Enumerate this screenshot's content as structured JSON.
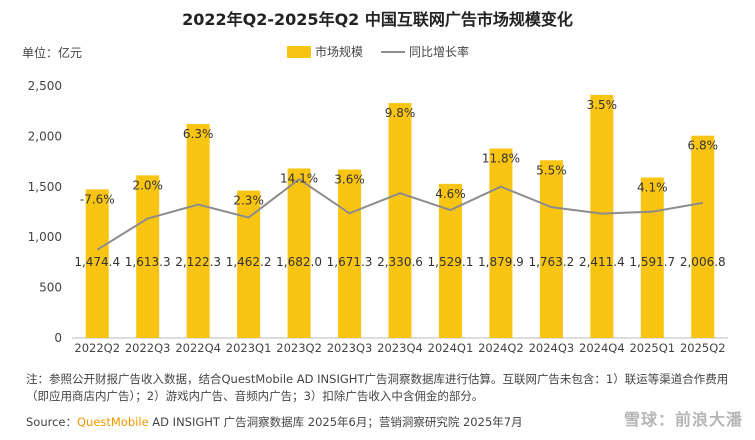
{
  "chart_data": {
    "type": "bar",
    "title": "2022年Q2-2025年Q2 中国互联网广告市场规模变化",
    "unit_label": "单位：亿元",
    "categories": [
      "2022Q2",
      "2022Q3",
      "2022Q4",
      "2023Q1",
      "2023Q2",
      "2023Q3",
      "2023Q4",
      "2024Q1",
      "2024Q2",
      "2024Q3",
      "2024Q4",
      "2025Q1",
      "2025Q2"
    ],
    "series": [
      {
        "name": "市场规模",
        "kind": "bar",
        "color": "#f9c412",
        "values": [
          1474.4,
          1613.3,
          2122.3,
          1462.2,
          1682.0,
          1671.3,
          2330.6,
          1529.1,
          1879.9,
          1763.2,
          2411.4,
          1591.7,
          2006.8
        ],
        "labels": [
          "1,474.4",
          "1,613.3",
          "2,122.3",
          "1,462.2",
          "1,682.0",
          "1,671.3",
          "2,330.6",
          "1,529.1",
          "1,879.9",
          "1,763.2",
          "2,411.4",
          "1,591.7",
          "2,006.8"
        ]
      },
      {
        "name": "同比增长率",
        "kind": "line",
        "color": "#8c8c8c",
        "values": [
          -7.6,
          2.0,
          6.3,
          2.3,
          14.1,
          3.6,
          9.8,
          4.6,
          11.8,
          5.5,
          3.5,
          4.1,
          6.8
        ],
        "labels": [
          "-7.6%",
          "2.0%",
          "6.3%",
          "2.3%",
          "14.1%",
          "3.6%",
          "9.8%",
          "4.6%",
          "11.8%",
          "5.5%",
          "3.5%",
          "4.1%",
          "6.8%"
        ]
      }
    ],
    "yticks": [
      "0",
      "500",
      "1,000",
      "1,500",
      "2,000",
      "2,500"
    ],
    "ylim": [
      0,
      2500
    ],
    "legend_position": "top-center"
  },
  "note": "注：参照公开财报广告收入数据，结合QuestMobile AD INSIGHT广告洞察数据库进行估算。互联网广告未包含：1）联运等渠道合作费用（即应用商店内广告）；2）游戏内广告、音频内广告；3）扣除广告收入中含佣金的部分。",
  "source": {
    "prefix": "Source：",
    "brand": "QuestMobile",
    "rest": " AD INSIGHT 广告洞察数据库 2025年6月；营销洞察研究院 2025年7月"
  },
  "watermark": "雪球：前浪大潘"
}
